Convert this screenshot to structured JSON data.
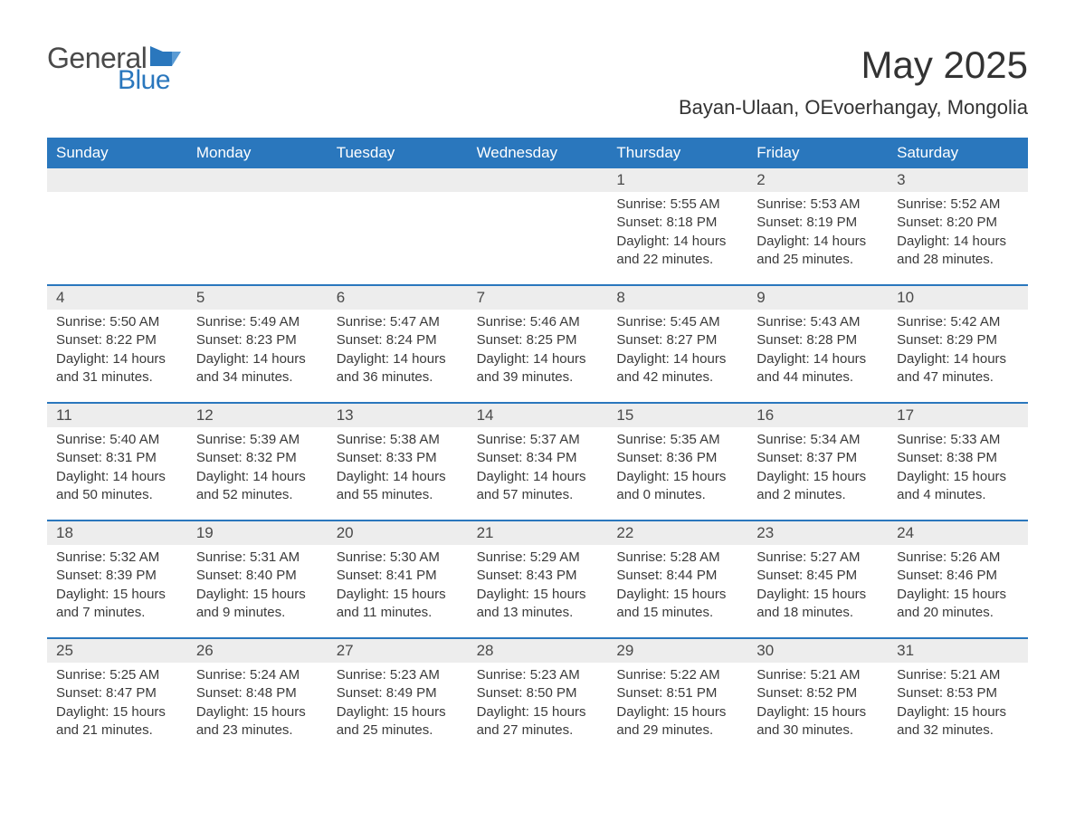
{
  "brand": {
    "word1": "General",
    "word2": "Blue",
    "accent_color": "#2a77bd",
    "text_color": "#4a4a4a"
  },
  "header": {
    "month_title": "May 2025",
    "location": "Bayan-Ulaan, OEvoerhangay, Mongolia"
  },
  "styling": {
    "page_bg": "#ffffff",
    "header_row_bg": "#2a77bd",
    "header_row_text": "#ffffff",
    "daynum_bar_bg": "#ededed",
    "week_divider_color": "#2a77bd",
    "body_text_color": "#3a3a3a",
    "font_family": "Segoe UI, Arial, Helvetica, sans-serif",
    "month_title_fontsize_pt": 32,
    "location_fontsize_pt": 17,
    "weekday_fontsize_pt": 13,
    "daynum_fontsize_pt": 13,
    "body_fontsize_pt": 11,
    "columns": 7,
    "rows": 5
  },
  "weekdays": [
    "Sunday",
    "Monday",
    "Tuesday",
    "Wednesday",
    "Thursday",
    "Friday",
    "Saturday"
  ],
  "weeks": [
    [
      {
        "n": "",
        "sunrise": "",
        "sunset": "",
        "daylight": ""
      },
      {
        "n": "",
        "sunrise": "",
        "sunset": "",
        "daylight": ""
      },
      {
        "n": "",
        "sunrise": "",
        "sunset": "",
        "daylight": ""
      },
      {
        "n": "",
        "sunrise": "",
        "sunset": "",
        "daylight": ""
      },
      {
        "n": "1",
        "sunrise": "Sunrise: 5:55 AM",
        "sunset": "Sunset: 8:18 PM",
        "daylight": "Daylight: 14 hours and 22 minutes."
      },
      {
        "n": "2",
        "sunrise": "Sunrise: 5:53 AM",
        "sunset": "Sunset: 8:19 PM",
        "daylight": "Daylight: 14 hours and 25 minutes."
      },
      {
        "n": "3",
        "sunrise": "Sunrise: 5:52 AM",
        "sunset": "Sunset: 8:20 PM",
        "daylight": "Daylight: 14 hours and 28 minutes."
      }
    ],
    [
      {
        "n": "4",
        "sunrise": "Sunrise: 5:50 AM",
        "sunset": "Sunset: 8:22 PM",
        "daylight": "Daylight: 14 hours and 31 minutes."
      },
      {
        "n": "5",
        "sunrise": "Sunrise: 5:49 AM",
        "sunset": "Sunset: 8:23 PM",
        "daylight": "Daylight: 14 hours and 34 minutes."
      },
      {
        "n": "6",
        "sunrise": "Sunrise: 5:47 AM",
        "sunset": "Sunset: 8:24 PM",
        "daylight": "Daylight: 14 hours and 36 minutes."
      },
      {
        "n": "7",
        "sunrise": "Sunrise: 5:46 AM",
        "sunset": "Sunset: 8:25 PM",
        "daylight": "Daylight: 14 hours and 39 minutes."
      },
      {
        "n": "8",
        "sunrise": "Sunrise: 5:45 AM",
        "sunset": "Sunset: 8:27 PM",
        "daylight": "Daylight: 14 hours and 42 minutes."
      },
      {
        "n": "9",
        "sunrise": "Sunrise: 5:43 AM",
        "sunset": "Sunset: 8:28 PM",
        "daylight": "Daylight: 14 hours and 44 minutes."
      },
      {
        "n": "10",
        "sunrise": "Sunrise: 5:42 AM",
        "sunset": "Sunset: 8:29 PM",
        "daylight": "Daylight: 14 hours and 47 minutes."
      }
    ],
    [
      {
        "n": "11",
        "sunrise": "Sunrise: 5:40 AM",
        "sunset": "Sunset: 8:31 PM",
        "daylight": "Daylight: 14 hours and 50 minutes."
      },
      {
        "n": "12",
        "sunrise": "Sunrise: 5:39 AM",
        "sunset": "Sunset: 8:32 PM",
        "daylight": "Daylight: 14 hours and 52 minutes."
      },
      {
        "n": "13",
        "sunrise": "Sunrise: 5:38 AM",
        "sunset": "Sunset: 8:33 PM",
        "daylight": "Daylight: 14 hours and 55 minutes."
      },
      {
        "n": "14",
        "sunrise": "Sunrise: 5:37 AM",
        "sunset": "Sunset: 8:34 PM",
        "daylight": "Daylight: 14 hours and 57 minutes."
      },
      {
        "n": "15",
        "sunrise": "Sunrise: 5:35 AM",
        "sunset": "Sunset: 8:36 PM",
        "daylight": "Daylight: 15 hours and 0 minutes."
      },
      {
        "n": "16",
        "sunrise": "Sunrise: 5:34 AM",
        "sunset": "Sunset: 8:37 PM",
        "daylight": "Daylight: 15 hours and 2 minutes."
      },
      {
        "n": "17",
        "sunrise": "Sunrise: 5:33 AM",
        "sunset": "Sunset: 8:38 PM",
        "daylight": "Daylight: 15 hours and 4 minutes."
      }
    ],
    [
      {
        "n": "18",
        "sunrise": "Sunrise: 5:32 AM",
        "sunset": "Sunset: 8:39 PM",
        "daylight": "Daylight: 15 hours and 7 minutes."
      },
      {
        "n": "19",
        "sunrise": "Sunrise: 5:31 AM",
        "sunset": "Sunset: 8:40 PM",
        "daylight": "Daylight: 15 hours and 9 minutes."
      },
      {
        "n": "20",
        "sunrise": "Sunrise: 5:30 AM",
        "sunset": "Sunset: 8:41 PM",
        "daylight": "Daylight: 15 hours and 11 minutes."
      },
      {
        "n": "21",
        "sunrise": "Sunrise: 5:29 AM",
        "sunset": "Sunset: 8:43 PM",
        "daylight": "Daylight: 15 hours and 13 minutes."
      },
      {
        "n": "22",
        "sunrise": "Sunrise: 5:28 AM",
        "sunset": "Sunset: 8:44 PM",
        "daylight": "Daylight: 15 hours and 15 minutes."
      },
      {
        "n": "23",
        "sunrise": "Sunrise: 5:27 AM",
        "sunset": "Sunset: 8:45 PM",
        "daylight": "Daylight: 15 hours and 18 minutes."
      },
      {
        "n": "24",
        "sunrise": "Sunrise: 5:26 AM",
        "sunset": "Sunset: 8:46 PM",
        "daylight": "Daylight: 15 hours and 20 minutes."
      }
    ],
    [
      {
        "n": "25",
        "sunrise": "Sunrise: 5:25 AM",
        "sunset": "Sunset: 8:47 PM",
        "daylight": "Daylight: 15 hours and 21 minutes."
      },
      {
        "n": "26",
        "sunrise": "Sunrise: 5:24 AM",
        "sunset": "Sunset: 8:48 PM",
        "daylight": "Daylight: 15 hours and 23 minutes."
      },
      {
        "n": "27",
        "sunrise": "Sunrise: 5:23 AM",
        "sunset": "Sunset: 8:49 PM",
        "daylight": "Daylight: 15 hours and 25 minutes."
      },
      {
        "n": "28",
        "sunrise": "Sunrise: 5:23 AM",
        "sunset": "Sunset: 8:50 PM",
        "daylight": "Daylight: 15 hours and 27 minutes."
      },
      {
        "n": "29",
        "sunrise": "Sunrise: 5:22 AM",
        "sunset": "Sunset: 8:51 PM",
        "daylight": "Daylight: 15 hours and 29 minutes."
      },
      {
        "n": "30",
        "sunrise": "Sunrise: 5:21 AM",
        "sunset": "Sunset: 8:52 PM",
        "daylight": "Daylight: 15 hours and 30 minutes."
      },
      {
        "n": "31",
        "sunrise": "Sunrise: 5:21 AM",
        "sunset": "Sunset: 8:53 PM",
        "daylight": "Daylight: 15 hours and 32 minutes."
      }
    ]
  ]
}
